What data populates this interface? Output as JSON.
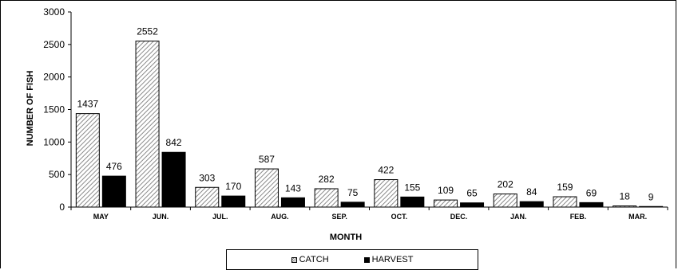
{
  "chart_data": {
    "type": "bar",
    "categories": [
      "MAY",
      "JUN.",
      "JUL.",
      "AUG.",
      "SEP.",
      "OCT.",
      "DEC.",
      "JAN.",
      "FEB.",
      "MAR."
    ],
    "series": [
      {
        "name": "CATCH",
        "values": [
          1437,
          2552,
          303,
          587,
          282,
          422,
          109,
          202,
          159,
          18
        ],
        "color": "#d0d0d0",
        "pattern": "diagonal-hatch"
      },
      {
        "name": "HARVEST",
        "values": [
          476,
          842,
          170,
          143,
          75,
          155,
          65,
          84,
          69,
          9
        ],
        "color": "#000000"
      }
    ],
    "xlabel": "MONTH",
    "ylabel": "NUMBER OF FISH",
    "ylim": [
      0,
      3000
    ],
    "yticks": [
      0,
      500,
      1000,
      1500,
      2000,
      2500,
      3000
    ],
    "grid": false,
    "legend_position": "bottom"
  }
}
